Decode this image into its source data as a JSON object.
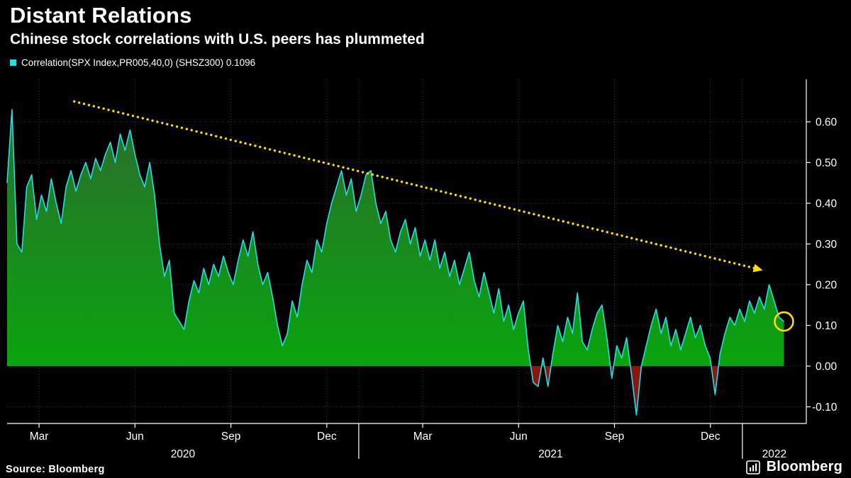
{
  "header": {
    "title": "Distant Relations",
    "subtitle": "Chinese stock correlations with U.S. peers has plummeted"
  },
  "legend": {
    "label": "Correlation(SPX Index,PR005,40,0) (SHSZ300) 0.1096",
    "swatch_color": "#1fe0e8"
  },
  "footer": {
    "source": "Source: Bloomberg",
    "brand": "Bloomberg"
  },
  "chart_data": {
    "type": "area",
    "title": "Distant Relations",
    "subtitle": "Chinese stock correlations with U.S. peers has plummeted",
    "xlabel": "",
    "ylabel": "",
    "ylim": [
      -0.146,
      0.7
    ],
    "grid": true,
    "legend_position": "top-left",
    "t_start": 0,
    "t_end": 24.3,
    "t_axis_max": 25.0,
    "y_ticks": [
      0.6,
      0.5,
      0.4,
      0.3,
      0.2,
      0.1,
      0.0,
      -0.1
    ],
    "x_months": [
      {
        "label": "Mar",
        "t": 1
      },
      {
        "label": "Jun",
        "t": 4
      },
      {
        "label": "Sep",
        "t": 7
      },
      {
        "label": "Dec",
        "t": 10
      },
      {
        "label": "Mar",
        "t": 13
      },
      {
        "label": "Jun",
        "t": 16
      },
      {
        "label": "Sep",
        "t": 19
      },
      {
        "label": "Dec",
        "t": 22
      }
    ],
    "x_years": [
      {
        "label": "2020",
        "t": 5.5
      },
      {
        "label": "2021",
        "t": 17
      },
      {
        "label": "2022",
        "t": 24.0
      }
    ],
    "x_year_boundaries": [
      11,
      23
    ],
    "series": [
      {
        "name": "Correlation(SPX Index,PR005,40,0) (SHSZ300)",
        "last_value": 0.1096,
        "values": [
          0.45,
          0.63,
          0.3,
          0.28,
          0.44,
          0.47,
          0.36,
          0.42,
          0.38,
          0.46,
          0.4,
          0.35,
          0.44,
          0.48,
          0.43,
          0.47,
          0.5,
          0.46,
          0.51,
          0.48,
          0.52,
          0.55,
          0.5,
          0.57,
          0.53,
          0.58,
          0.52,
          0.47,
          0.44,
          0.5,
          0.42,
          0.3,
          0.22,
          0.26,
          0.13,
          0.11,
          0.09,
          0.16,
          0.21,
          0.18,
          0.24,
          0.2,
          0.25,
          0.22,
          0.27,
          0.23,
          0.2,
          0.26,
          0.31,
          0.27,
          0.33,
          0.25,
          0.2,
          0.23,
          0.17,
          0.1,
          0.05,
          0.08,
          0.16,
          0.12,
          0.2,
          0.26,
          0.23,
          0.31,
          0.28,
          0.35,
          0.4,
          0.44,
          0.48,
          0.42,
          0.46,
          0.38,
          0.42,
          0.47,
          0.48,
          0.4,
          0.35,
          0.38,
          0.31,
          0.28,
          0.33,
          0.36,
          0.3,
          0.34,
          0.27,
          0.31,
          0.26,
          0.31,
          0.24,
          0.28,
          0.22,
          0.26,
          0.2,
          0.24,
          0.28,
          0.21,
          0.17,
          0.23,
          0.18,
          0.13,
          0.19,
          0.11,
          0.15,
          0.09,
          0.13,
          0.16,
          0.04,
          -0.04,
          -0.05,
          0.02,
          -0.05,
          0.03,
          0.1,
          0.06,
          0.12,
          0.08,
          0.18,
          0.06,
          0.04,
          0.09,
          0.13,
          0.15,
          0.07,
          -0.03,
          0.05,
          0.02,
          0.07,
          -0.02,
          -0.12,
          0.0,
          0.05,
          0.1,
          0.14,
          0.08,
          0.12,
          0.05,
          0.09,
          0.04,
          0.08,
          0.12,
          0.07,
          0.1,
          0.05,
          0.02,
          -0.07,
          0.03,
          0.08,
          0.12,
          0.1,
          0.14,
          0.11,
          0.16,
          0.13,
          0.17,
          0.14,
          0.2,
          0.16,
          0.12,
          0.1096
        ]
      }
    ],
    "trend_line": {
      "style": "dotted",
      "color": "#ffdd00",
      "from": {
        "t": 2.1,
        "v": 0.65
      },
      "to": {
        "t": 23.4,
        "v": 0.24
      }
    },
    "highlight": {
      "t": 24.3,
      "v": 0.1096,
      "color": "#ffdd00"
    },
    "colors": {
      "line": "#1fe0e8",
      "area_top": "#2f6630",
      "area_bottom": "#0aa40f",
      "negative": "#8c1510",
      "grid": "#3d3d3d",
      "axis": "#ffffff",
      "background": "#000000",
      "text": "#ffffff"
    }
  }
}
